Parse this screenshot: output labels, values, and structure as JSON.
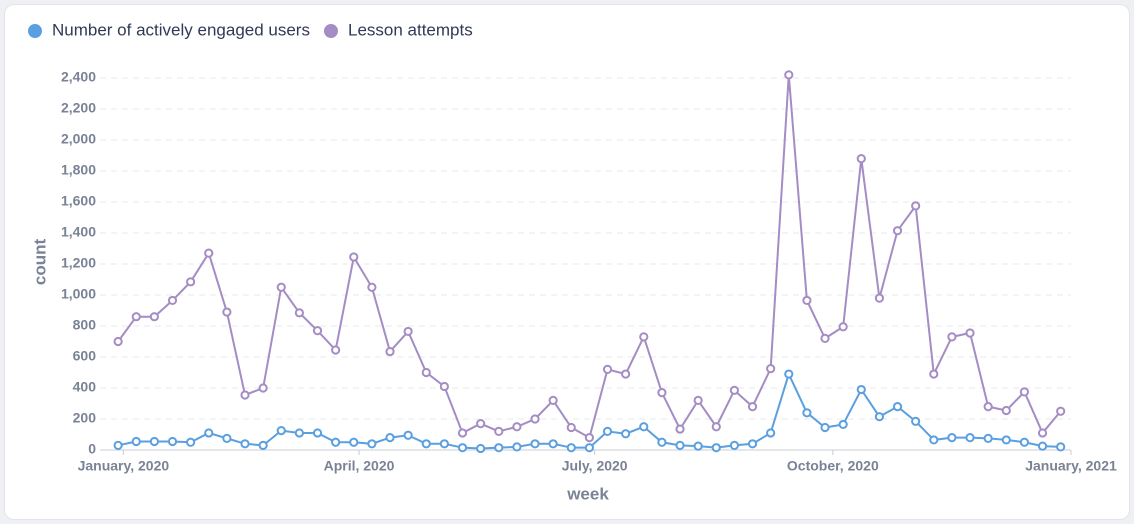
{
  "chart_data": {
    "type": "line",
    "categories": [
      null,
      null,
      null,
      null,
      null,
      null,
      null,
      null,
      null,
      null,
      null,
      null,
      null,
      null,
      null,
      null,
      null,
      null,
      null,
      null,
      null,
      null,
      null,
      null,
      null,
      null,
      null,
      null,
      null,
      null,
      null,
      null,
      null,
      null,
      null,
      null,
      null,
      null,
      null,
      null,
      null,
      null,
      null,
      null,
      null,
      null,
      null,
      null,
      null,
      null,
      null,
      null,
      null
    ],
    "series": [
      {
        "name": "Number of actively engaged users",
        "color": "#5a9fe0",
        "values": [
          30,
          55,
          55,
          55,
          50,
          110,
          75,
          40,
          30,
          125,
          110,
          110,
          50,
          50,
          40,
          80,
          95,
          40,
          40,
          15,
          10,
          15,
          20,
          40,
          40,
          15,
          15,
          120,
          105,
          150,
          50,
          30,
          25,
          15,
          30,
          40,
          110,
          490,
          240,
          145,
          165,
          390,
          215,
          280,
          185,
          65,
          80,
          80,
          75,
          65,
          50,
          25,
          20
        ]
      },
      {
        "name": "Lesson attempts",
        "color": "#a48cc4",
        "values": [
          700,
          860,
          860,
          965,
          1085,
          1270,
          890,
          355,
          400,
          1050,
          885,
          770,
          645,
          1245,
          1050,
          635,
          765,
          500,
          410,
          110,
          170,
          120,
          150,
          200,
          320,
          145,
          80,
          520,
          490,
          730,
          370,
          135,
          320,
          150,
          385,
          280,
          525,
          2420,
          965,
          720,
          795,
          1880,
          980,
          1415,
          1575,
          490,
          730,
          755,
          280,
          255,
          375,
          110,
          250
        ]
      }
    ],
    "xlabel": "week",
    "ylabel": "count",
    "xlim": [
      -1,
      52.57
    ],
    "xticks": [
      {
        "value": 0.29,
        "label": "January, 2020"
      },
      {
        "value": 13.29,
        "label": "April, 2020"
      },
      {
        "value": 26.29,
        "label": "July, 2020"
      },
      {
        "value": 39.43,
        "label": "October, 2020"
      },
      {
        "value": 52.57,
        "label": "January, 2021"
      }
    ],
    "ylim": [
      0,
      2400
    ],
    "yticks": [
      0,
      200,
      400,
      600,
      800,
      {
        "value": 1000,
        "label": "1,000"
      },
      {
        "value": 1200,
        "label": "1,200"
      },
      {
        "value": 1400,
        "label": "1,400"
      },
      {
        "value": 1600,
        "label": "1,600"
      },
      {
        "value": 1800,
        "label": "1,800"
      },
      {
        "value": 2000,
        "label": "2,000"
      },
      {
        "value": 2200,
        "label": "2,200"
      },
      {
        "value": 2400,
        "label": "2,400"
      }
    ],
    "grid": true,
    "legend": "top-left"
  }
}
